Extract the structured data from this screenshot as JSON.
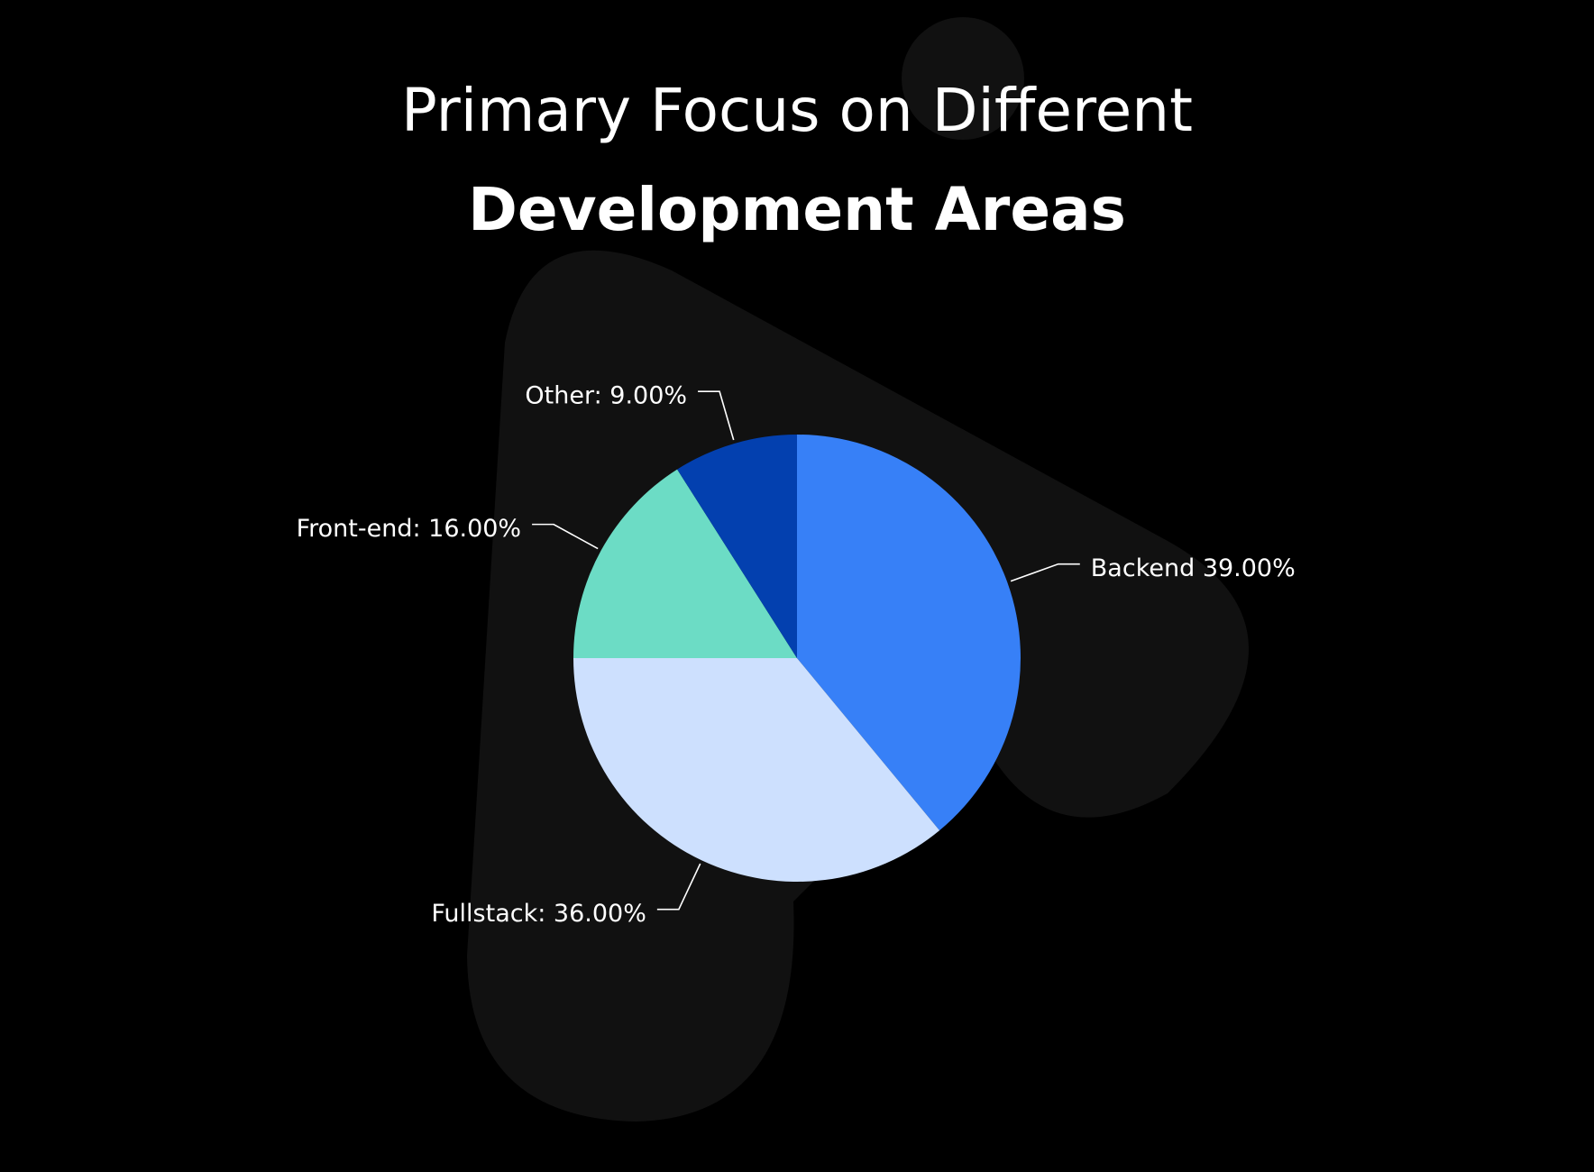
{
  "chart_data": {
    "type": "pie",
    "title_lines": [
      "Primary Focus on Different",
      "Development Areas"
    ],
    "values": [
      39,
      36,
      16,
      9
    ],
    "value_labels": [
      "Backend 39.00%",
      "Fullstack: 36.00%",
      "Front-end: 16.00%",
      "Other: 9.00%"
    ],
    "colors": [
      "#3780f7",
      "#cde0fe",
      "#6cdcc5",
      "#0340af"
    ]
  }
}
